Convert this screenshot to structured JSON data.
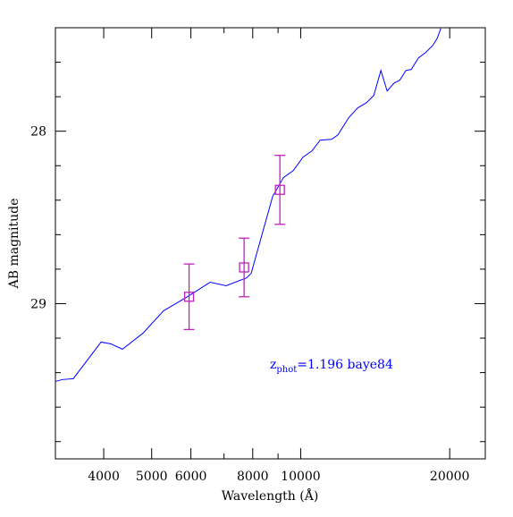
{
  "chart_data": {
    "type": "line",
    "xlabel": "Wavelength (Å)",
    "ylabel": "AB magnitude",
    "xscale": "log",
    "xlim": [
      3195,
      23600
    ],
    "ylim": [
      29.9,
      27.4
    ],
    "xticks": [
      4000,
      5000,
      6000,
      8000,
      10000,
      20000
    ],
    "xminorticks": [
      7000,
      9000
    ],
    "yticks": [
      28,
      29
    ],
    "yminorticks": [
      27.6,
      27.8,
      28.2,
      28.4,
      28.6,
      28.8,
      29.2,
      29.4,
      29.6,
      29.8
    ],
    "model": {
      "color": "#0000ff",
      "x": [
        3195,
        3303,
        3472,
        3951,
        4135,
        4364,
        4803,
        5284,
        5912,
        6561,
        7071,
        7780,
        7943,
        8777,
        9228,
        9661,
        10112,
        10541,
        10944,
        11549,
        11892,
        12503,
        13032,
        13589,
        14048,
        14521,
        14950,
        15455,
        15845,
        16315,
        16727,
        17294,
        17879,
        18486,
        18874,
        19190
      ],
      "values": [
        29.451,
        29.44,
        29.435,
        29.223,
        29.233,
        29.264,
        29.171,
        29.041,
        28.959,
        28.876,
        28.896,
        28.85,
        28.824,
        28.378,
        28.269,
        28.228,
        28.15,
        28.114,
        28.052,
        28.047,
        28.021,
        27.922,
        27.865,
        27.834,
        27.793,
        27.648,
        27.767,
        27.72,
        27.705,
        27.648,
        27.642,
        27.575,
        27.544,
        27.503,
        27.461,
        27.404
      ]
    },
    "photometry": {
      "color": "#c020c0",
      "x": [
        5950,
        7685,
        9077
      ],
      "values": [
        28.96,
        28.79,
        28.34
      ],
      "errors": [
        0.19,
        0.17,
        0.2
      ]
    },
    "annotation": {
      "color": "#0000ff",
      "base": "z",
      "subscript": "phot",
      "text": "=1.196 baye84"
    }
  }
}
